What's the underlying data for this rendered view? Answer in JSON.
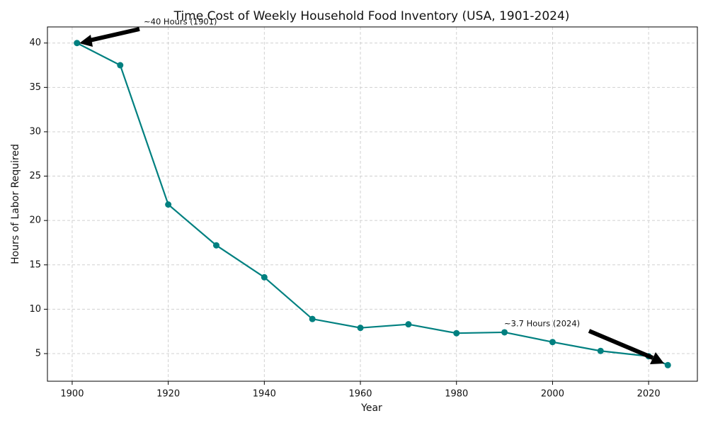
{
  "chart_data": {
    "type": "line",
    "title": "Time Cost of Weekly Household Food Inventory (USA, 1901-2024)",
    "x_label": "Year",
    "y_label": "Hours of Labor Required",
    "x": [
      1901,
      1910,
      1920,
      1930,
      1940,
      1950,
      1960,
      1970,
      1980,
      1990,
      2000,
      2010,
      2020,
      2024
    ],
    "series": [
      {
        "name": "Hours of Labor Required",
        "color": "#008080",
        "values": [
          40,
          37.5,
          21.8,
          17.2,
          13.6,
          8.9,
          7.9,
          8.3,
          7.3,
          7.4,
          6.3,
          5.3,
          4.7,
          3.7
        ]
      }
    ],
    "xlim": [
      1894.85,
      2030.15
    ],
    "ylim": [
      1.885,
      41.815
    ],
    "xticks": [
      1900,
      1920,
      1940,
      1960,
      1980,
      2000,
      2020
    ],
    "yticks": [
      5,
      10,
      15,
      20,
      25,
      30,
      35,
      40
    ],
    "grid": true,
    "annotations": [
      {
        "text": "~40 Hours (1901)"
      },
      {
        "text": "~3.7 Hours (2024)"
      }
    ]
  }
}
